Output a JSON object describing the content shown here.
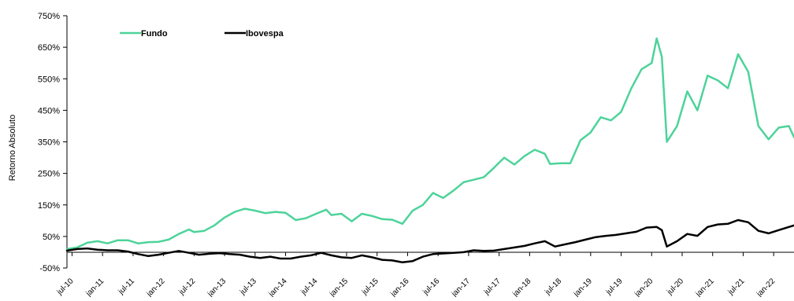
{
  "chart_data": {
    "type": "line",
    "ylabel": "Retorno Absoluto",
    "ylim": [
      -50,
      750
    ],
    "y_ticks": [
      "750%",
      "650%",
      "550%",
      "450%",
      "350%",
      "250%",
      "150%",
      "50%",
      "-50%"
    ],
    "y_tick_values": [
      750,
      650,
      550,
      450,
      350,
      250,
      150,
      50,
      -50
    ],
    "x_ticks": [
      "jul-10",
      "jan-11",
      "jul-11",
      "jan-12",
      "jul-12",
      "jan-13",
      "jul-13",
      "jan-14",
      "jul-14",
      "jan-15",
      "jul-15",
      "jan-16",
      "jul-16",
      "jan-17",
      "jul-17",
      "jan-18",
      "jul-18",
      "jan-19",
      "jul-19",
      "jan-20",
      "jul-20",
      "jan-21",
      "jul-21",
      "jan-22"
    ],
    "x_range": [
      "2010-06",
      "2022-05"
    ],
    "grid": false,
    "legend_position": "top-left",
    "series": [
      {
        "name": "Fundo",
        "color": "#4dd39a",
        "points": [
          [
            "2010-06",
            10
          ],
          [
            "2010-08",
            15
          ],
          [
            "2010-10",
            30
          ],
          [
            "2010-12",
            35
          ],
          [
            "2011-02",
            28
          ],
          [
            "2011-04",
            38
          ],
          [
            "2011-06",
            38
          ],
          [
            "2011-08",
            28
          ],
          [
            "2011-10",
            32
          ],
          [
            "2011-12",
            33
          ],
          [
            "2012-02",
            40
          ],
          [
            "2012-04",
            58
          ],
          [
            "2012-06",
            72
          ],
          [
            "2012-07",
            64
          ],
          [
            "2012-09",
            68
          ],
          [
            "2012-11",
            85
          ],
          [
            "2013-01",
            110
          ],
          [
            "2013-03",
            128
          ],
          [
            "2013-05",
            138
          ],
          [
            "2013-07",
            132
          ],
          [
            "2013-09",
            124
          ],
          [
            "2013-11",
            128
          ],
          [
            "2014-01",
            125
          ],
          [
            "2014-03",
            102
          ],
          [
            "2014-05",
            108
          ],
          [
            "2014-07",
            122
          ],
          [
            "2014-09",
            135
          ],
          [
            "2014-10",
            118
          ],
          [
            "2014-12",
            122
          ],
          [
            "2015-02",
            98
          ],
          [
            "2015-04",
            122
          ],
          [
            "2015-06",
            115
          ],
          [
            "2015-08",
            105
          ],
          [
            "2015-10",
            103
          ],
          [
            "2015-12",
            90
          ],
          [
            "2016-02",
            132
          ],
          [
            "2016-04",
            150
          ],
          [
            "2016-06",
            188
          ],
          [
            "2016-08",
            172
          ],
          [
            "2016-10",
            195
          ],
          [
            "2016-12",
            222
          ],
          [
            "2017-02",
            230
          ],
          [
            "2017-04",
            238
          ],
          [
            "2017-06",
            268
          ],
          [
            "2017-08",
            300
          ],
          [
            "2017-10",
            278
          ],
          [
            "2017-12",
            305
          ],
          [
            "2018-02",
            325
          ],
          [
            "2018-04",
            312
          ],
          [
            "2018-05",
            280
          ],
          [
            "2018-07",
            282
          ],
          [
            "2018-09",
            282
          ],
          [
            "2018-11",
            355
          ],
          [
            "2019-01",
            380
          ],
          [
            "2019-03",
            428
          ],
          [
            "2019-05",
            418
          ],
          [
            "2019-07",
            445
          ],
          [
            "2019-09",
            520
          ],
          [
            "2019-11",
            580
          ],
          [
            "2020-01",
            600
          ],
          [
            "2020-02",
            678
          ],
          [
            "2020-03",
            620
          ],
          [
            "2020-04",
            350
          ],
          [
            "2020-06",
            400
          ],
          [
            "2020-08",
            510
          ],
          [
            "2020-10",
            450
          ],
          [
            "2020-12",
            560
          ],
          [
            "2021-02",
            545
          ],
          [
            "2021-04",
            520
          ],
          [
            "2021-06",
            628
          ],
          [
            "2021-08",
            572
          ],
          [
            "2021-10",
            400
          ],
          [
            "2021-12",
            358
          ],
          [
            "2022-02",
            395
          ],
          [
            "2022-04",
            400
          ],
          [
            "2022-05",
            365
          ]
        ]
      },
      {
        "name": "Ibovespa",
        "color": "#000000",
        "points": [
          [
            "2010-06",
            5
          ],
          [
            "2010-08",
            10
          ],
          [
            "2010-10",
            12
          ],
          [
            "2010-12",
            8
          ],
          [
            "2011-02",
            6
          ],
          [
            "2011-04",
            6
          ],
          [
            "2011-06",
            2
          ],
          [
            "2011-08",
            -6
          ],
          [
            "2011-10",
            -12
          ],
          [
            "2011-12",
            -8
          ],
          [
            "2012-02",
            -2
          ],
          [
            "2012-04",
            4
          ],
          [
            "2012-06",
            -2
          ],
          [
            "2012-08",
            -8
          ],
          [
            "2012-10",
            -5
          ],
          [
            "2012-12",
            -3
          ],
          [
            "2013-02",
            -6
          ],
          [
            "2013-04",
            -8
          ],
          [
            "2013-06",
            -14
          ],
          [
            "2013-08",
            -18
          ],
          [
            "2013-10",
            -14
          ],
          [
            "2013-12",
            -20
          ],
          [
            "2014-02",
            -20
          ],
          [
            "2014-04",
            -14
          ],
          [
            "2014-06",
            -10
          ],
          [
            "2014-08",
            -2
          ],
          [
            "2014-10",
            -10
          ],
          [
            "2014-12",
            -16
          ],
          [
            "2015-02",
            -18
          ],
          [
            "2015-04",
            -10
          ],
          [
            "2015-06",
            -16
          ],
          [
            "2015-08",
            -24
          ],
          [
            "2015-10",
            -26
          ],
          [
            "2015-12",
            -32
          ],
          [
            "2016-02",
            -28
          ],
          [
            "2016-04",
            -14
          ],
          [
            "2016-06",
            -6
          ],
          [
            "2016-08",
            -4
          ],
          [
            "2016-10",
            -2
          ],
          [
            "2016-12",
            0
          ],
          [
            "2017-02",
            6
          ],
          [
            "2017-04",
            4
          ],
          [
            "2017-06",
            5
          ],
          [
            "2017-08",
            10
          ],
          [
            "2017-10",
            15
          ],
          [
            "2017-12",
            20
          ],
          [
            "2018-02",
            28
          ],
          [
            "2018-04",
            35
          ],
          [
            "2018-06",
            18
          ],
          [
            "2018-08",
            25
          ],
          [
            "2018-10",
            32
          ],
          [
            "2018-12",
            40
          ],
          [
            "2019-02",
            48
          ],
          [
            "2019-04",
            52
          ],
          [
            "2019-06",
            55
          ],
          [
            "2019-08",
            60
          ],
          [
            "2019-10",
            65
          ],
          [
            "2019-12",
            78
          ],
          [
            "2020-02",
            80
          ],
          [
            "2020-03",
            70
          ],
          [
            "2020-04",
            18
          ],
          [
            "2020-06",
            35
          ],
          [
            "2020-08",
            58
          ],
          [
            "2020-10",
            52
          ],
          [
            "2020-12",
            80
          ],
          [
            "2021-02",
            88
          ],
          [
            "2021-04",
            90
          ],
          [
            "2021-06",
            102
          ],
          [
            "2021-08",
            95
          ],
          [
            "2021-10",
            68
          ],
          [
            "2021-12",
            60
          ],
          [
            "2022-02",
            70
          ],
          [
            "2022-04",
            80
          ],
          [
            "2022-05",
            85
          ]
        ]
      }
    ]
  }
}
